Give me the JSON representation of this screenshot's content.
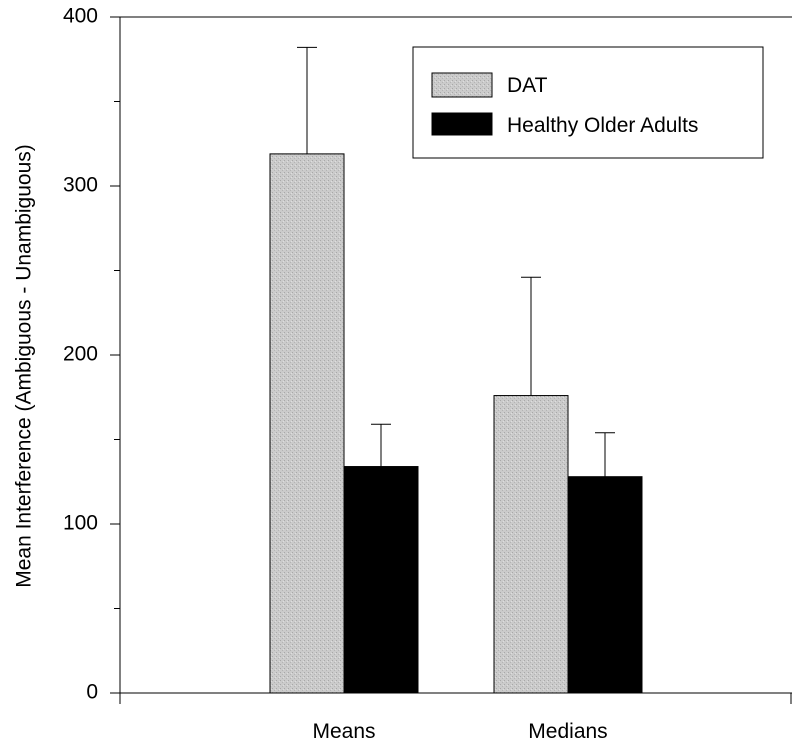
{
  "chart_data": {
    "type": "bar",
    "title": "",
    "xlabel": "",
    "ylabel": "Mean Interference (Ambiguous - Unambiguous)",
    "ylim": [
      0,
      400
    ],
    "yticks": [
      0,
      100,
      200,
      300,
      400
    ],
    "categories": [
      "Means",
      "Medians"
    ],
    "series": [
      {
        "name": "DAT",
        "values": [
          319,
          176
        ],
        "error": [
          63,
          70
        ],
        "color": "#c8c8c8"
      },
      {
        "name": "Healthy Older Adults",
        "values": [
          134,
          128
        ],
        "error": [
          25,
          26
        ],
        "color": "#000000"
      }
    ],
    "legend_position": "top-right",
    "grid": false
  }
}
